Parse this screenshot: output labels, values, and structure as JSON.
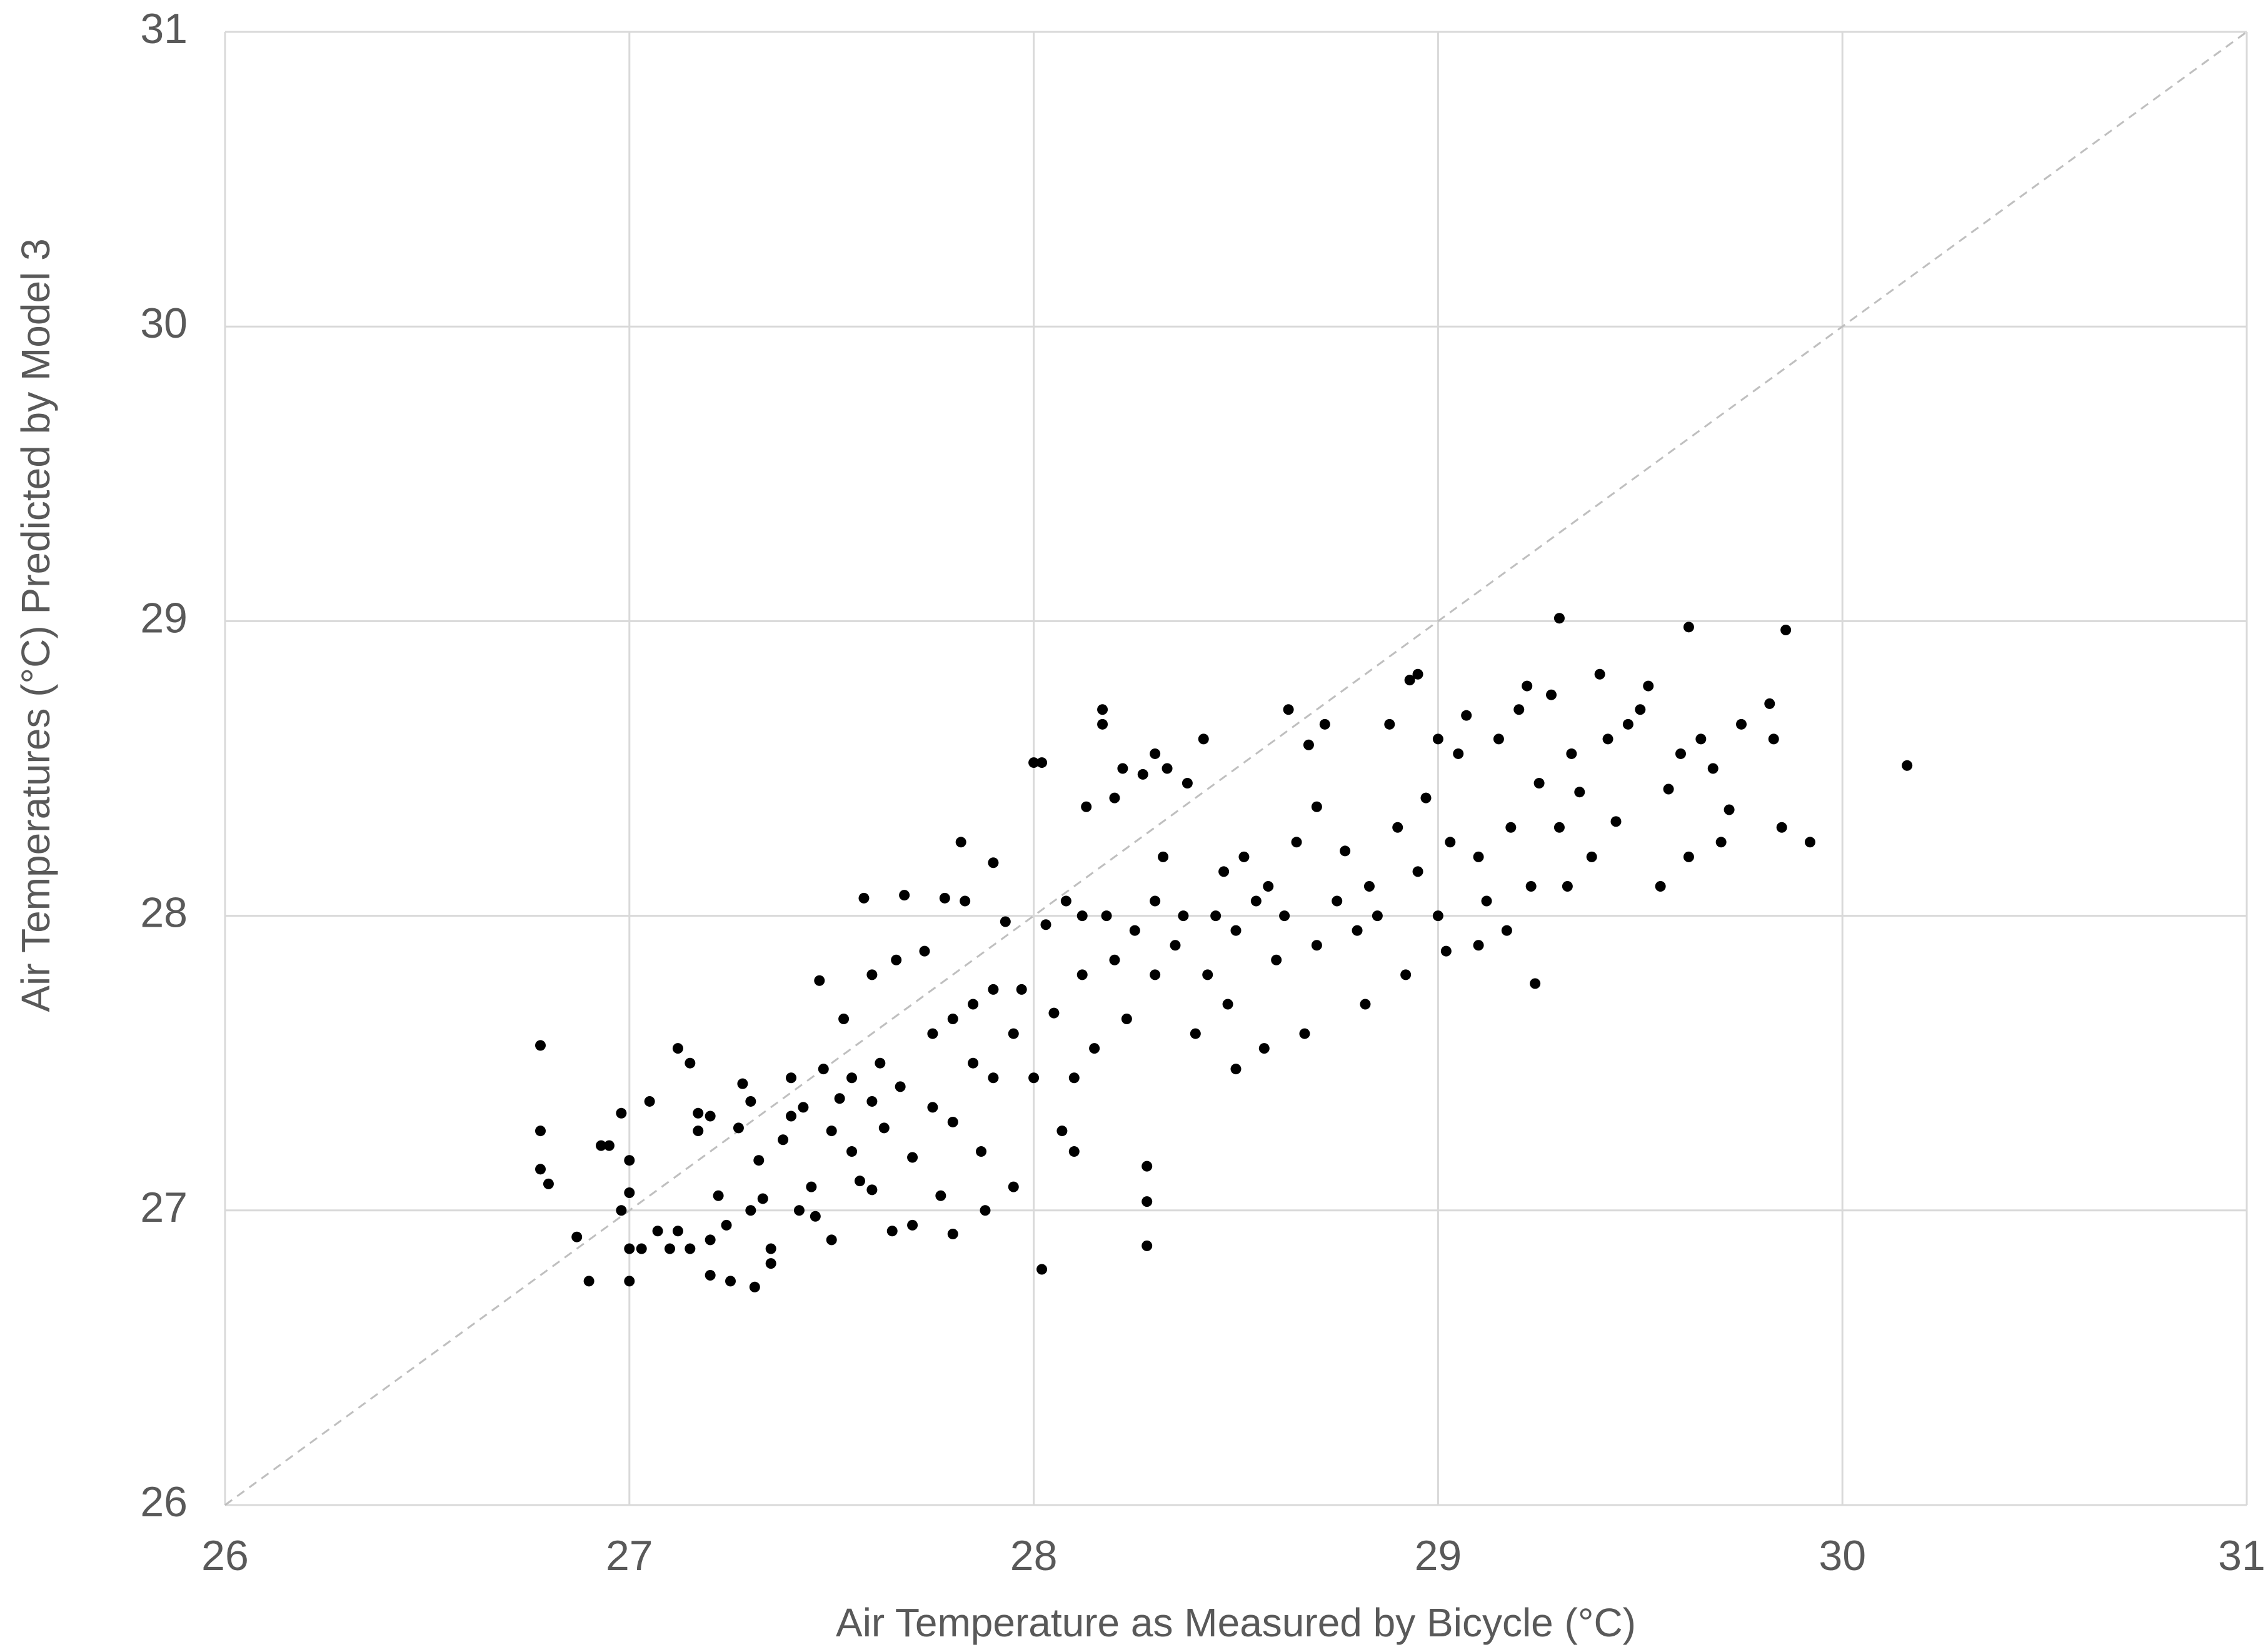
{
  "chart_data": {
    "type": "scatter",
    "x_label": "Air Temperature as Measured by Bicycle (°C)",
    "y_label": "Air Temperatures (°C) Predicted by Model 3",
    "xlim": [
      26,
      31
    ],
    "ylim": [
      26,
      31
    ],
    "xticks": [
      26,
      27,
      28,
      29,
      30,
      31
    ],
    "yticks": [
      26,
      27,
      28,
      29,
      30,
      31
    ],
    "grid": true,
    "grid_color": "#d9d9d9",
    "color": "#000000",
    "diagonal": true,
    "diagonal_color": "#bfbfbf",
    "x": [
      26.78,
      26.78,
      26.78,
      26.8,
      26.87,
      26.9,
      26.93,
      26.95,
      26.98,
      27.0,
      27.0,
      26.98,
      27.0,
      27.0,
      27.03,
      27.05,
      27.07,
      27.1,
      27.12,
      27.15,
      27.12,
      27.15,
      27.17,
      27.17,
      27.2,
      27.2,
      27.2,
      27.22,
      27.24,
      27.25,
      27.27,
      27.28,
      27.3,
      27.31,
      27.3,
      27.32,
      27.33,
      27.35,
      27.35,
      27.38,
      27.4,
      27.4,
      27.42,
      27.43,
      27.45,
      27.46,
      27.47,
      27.48,
      27.5,
      27.5,
      27.52,
      27.53,
      27.55,
      27.55,
      27.57,
      27.58,
      27.6,
      27.6,
      27.6,
      27.62,
      27.63,
      27.65,
      27.66,
      27.67,
      27.68,
      27.7,
      27.7,
      27.73,
      27.75,
      27.75,
      27.77,
      27.78,
      27.8,
      27.8,
      27.8,
      27.82,
      27.83,
      27.85,
      27.85,
      27.87,
      27.88,
      27.9,
      27.9,
      27.9,
      27.93,
      27.95,
      27.95,
      27.97,
      28.0,
      28.02,
      28.0,
      28.02,
      28.03,
      28.05,
      28.07,
      28.08,
      28.1,
      28.1,
      28.12,
      28.12,
      28.13,
      28.15,
      28.17,
      28.17,
      28.18,
      28.2,
      28.2,
      28.22,
      28.23,
      28.25,
      28.27,
      28.28,
      28.28,
      28.28,
      28.3,
      28.3,
      28.3,
      28.32,
      28.33,
      28.35,
      28.37,
      28.38,
      28.4,
      28.42,
      28.43,
      28.45,
      28.47,
      28.48,
      28.5,
      28.5,
      28.52,
      28.55,
      28.57,
      28.58,
      28.6,
      28.62,
      28.63,
      28.65,
      28.67,
      28.68,
      28.7,
      28.7,
      28.72,
      28.75,
      28.77,
      28.8,
      28.82,
      28.83,
      28.85,
      28.88,
      28.9,
      28.92,
      28.93,
      28.95,
      28.95,
      28.97,
      29.0,
      29.0,
      29.02,
      29.03,
      29.05,
      29.07,
      29.1,
      29.1,
      29.12,
      29.15,
      29.17,
      29.18,
      29.2,
      29.22,
      29.23,
      29.24,
      29.25,
      29.28,
      29.3,
      29.3,
      29.32,
      29.33,
      29.35,
      29.38,
      29.4,
      29.42,
      29.44,
      29.47,
      29.5,
      29.52,
      29.55,
      29.57,
      29.6,
      29.62,
      29.62,
      29.65,
      29.68,
      29.7,
      29.72,
      29.75,
      29.82,
      29.83,
      29.85,
      29.86,
      29.92,
      30.16
    ],
    "values": [
      27.56,
      27.27,
      27.14,
      27.09,
      26.91,
      26.76,
      27.22,
      27.22,
      27.33,
      27.17,
      27.06,
      27.0,
      26.87,
      26.76,
      26.87,
      27.37,
      26.93,
      26.87,
      26.93,
      26.87,
      27.55,
      27.5,
      27.33,
      27.27,
      27.32,
      26.9,
      26.78,
      27.05,
      26.95,
      26.76,
      27.28,
      27.43,
      27.0,
      26.74,
      27.37,
      27.17,
      27.04,
      26.87,
      26.82,
      27.24,
      27.45,
      27.32,
      27.0,
      27.35,
      27.08,
      26.98,
      27.78,
      27.48,
      27.27,
      26.9,
      27.38,
      27.65,
      27.45,
      27.2,
      27.1,
      28.06,
      27.8,
      27.37,
      27.07,
      27.5,
      27.28,
      26.93,
      27.85,
      27.42,
      28.07,
      27.18,
      26.95,
      27.88,
      27.6,
      27.35,
      27.05,
      28.06,
      27.65,
      27.3,
      26.92,
      28.25,
      28.05,
      27.5,
      27.7,
      27.2,
      27.0,
      28.18,
      27.75,
      27.45,
      27.98,
      27.6,
      27.08,
      27.75,
      28.52,
      28.52,
      27.45,
      26.8,
      27.97,
      27.67,
      27.27,
      28.05,
      27.45,
      27.2,
      28.0,
      27.8,
      28.37,
      27.55,
      28.7,
      28.65,
      28.0,
      27.85,
      28.4,
      28.5,
      27.65,
      27.95,
      28.48,
      27.15,
      27.03,
      26.88,
      28.55,
      28.05,
      27.8,
      28.2,
      28.5,
      27.9,
      28.0,
      28.45,
      27.6,
      28.6,
      27.8,
      28.0,
      28.15,
      27.7,
      27.48,
      27.95,
      28.2,
      28.05,
      27.55,
      28.1,
      27.85,
      28.0,
      28.7,
      28.25,
      27.6,
      28.58,
      28.37,
      27.9,
      28.65,
      28.05,
      28.22,
      27.95,
      27.7,
      28.1,
      28.0,
      28.65,
      28.3,
      27.8,
      28.8,
      28.82,
      28.15,
      28.4,
      28.6,
      28.0,
      27.88,
      28.25,
      28.55,
      28.68,
      28.2,
      27.9,
      28.05,
      28.6,
      27.95,
      28.3,
      28.7,
      28.78,
      28.1,
      27.77,
      28.45,
      28.75,
      29.01,
      28.3,
      28.1,
      28.55,
      28.42,
      28.2,
      28.82,
      28.6,
      28.32,
      28.65,
      28.7,
      28.78,
      28.1,
      28.43,
      28.55,
      28.98,
      28.2,
      28.6,
      28.5,
      28.25,
      28.36,
      28.65,
      28.72,
      28.6,
      28.3,
      28.97,
      28.25,
      28.51
    ]
  }
}
